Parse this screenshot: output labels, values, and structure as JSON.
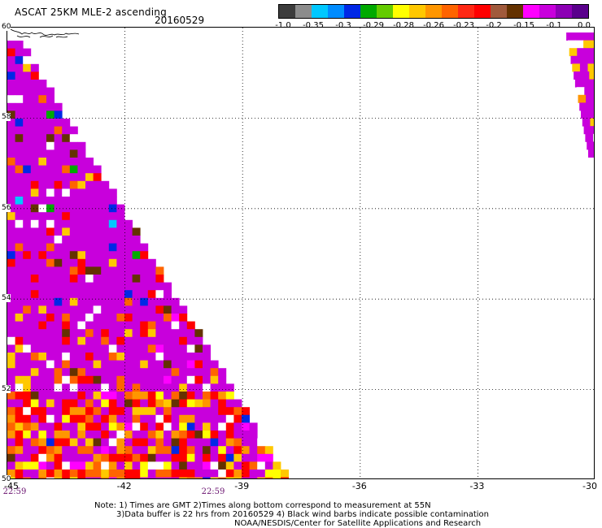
{
  "header": {
    "title": "ASCAT 25KM MLE-2 ascending",
    "date": "20160529"
  },
  "legend": {
    "segments": [
      {
        "color": "#3c3c3c"
      },
      {
        "color": "#8c8c8c"
      },
      {
        "color": "#00c8ff"
      },
      {
        "color": "#008cff"
      },
      {
        "color": "#0028e6"
      },
      {
        "color": "#00aa00"
      },
      {
        "color": "#64cc00"
      },
      {
        "color": "#ffff00"
      },
      {
        "color": "#ffc800"
      },
      {
        "color": "#ff9600"
      },
      {
        "color": "#ff6400"
      },
      {
        "color": "#ff2814"
      },
      {
        "color": "#ff0000"
      },
      {
        "color": "#a05a3c"
      },
      {
        "color": "#643200"
      },
      {
        "color": "#ff00ff"
      },
      {
        "color": "#c800dc"
      },
      {
        "color": "#8c00b4"
      },
      {
        "color": "#5a008c"
      }
    ],
    "labels": [
      "-1.0",
      "-0.35",
      "-0.3",
      "-0.29",
      "-0.28",
      "-0.26",
      "-0.23",
      "-0.2",
      "-0.15",
      "-0.1",
      "0.0"
    ]
  },
  "map": {
    "lon_range": [
      -45,
      -30
    ],
    "lat_range": [
      50,
      60
    ],
    "lon_ticks": [
      "-45",
      "-42",
      "-39",
      "-36",
      "-33",
      "-30"
    ],
    "lat_ticks": [
      "60",
      "58",
      "56",
      "54",
      "52",
      "50"
    ],
    "time_labels": [
      "22:59",
      "22:59"
    ],
    "background_color": "#ffffff",
    "dominant_color": "#c800dc",
    "swath_colors": [
      "#c800dc",
      "#ff0000",
      "#ff6400",
      "#ff9600",
      "#ffc800",
      "#ffff00",
      "#643200",
      "#ff00ff",
      "#0028e6",
      "#00aa00",
      "#00c8ff",
      "#ffffff"
    ]
  },
  "notes": {
    "line1": "Note: 1) Times are GMT 2)Times along bottom correspond to measurement at 55N",
    "line2": "3)Data buffer is 22 hrs from 20160529 4) Black wind barbs indicate possible contamination",
    "credit": "NOAA/NESDIS/Center for Satellite Applications and Research"
  }
}
